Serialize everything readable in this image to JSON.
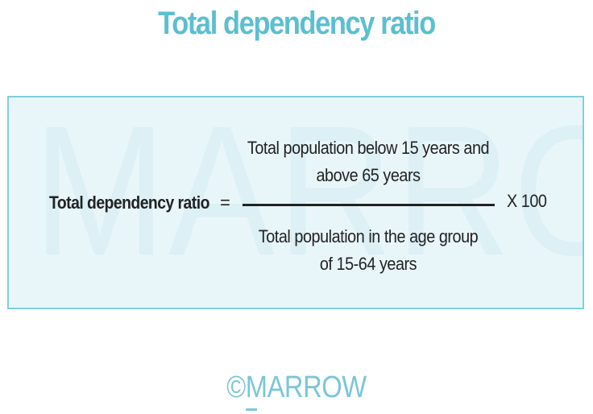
{
  "title": "Total dependency ratio",
  "formula": {
    "lhs": "Total dependency ratio",
    "equals": "=",
    "numerator_lines": [
      "Total population below 15 years and",
      "above 65 years"
    ],
    "denominator_lines": [
      "Total population in the age group",
      "of 15-64 years"
    ],
    "multiplier": "X 100"
  },
  "watermark": "MARROW",
  "logo": "©MARROW",
  "colors": {
    "title": "#5bbfd0",
    "box_border": "#7fcfdc",
    "box_background": "#e9f6f9",
    "watermark": "#dcf0f5",
    "logo": "#7cc6d8",
    "text": "#222222"
  }
}
